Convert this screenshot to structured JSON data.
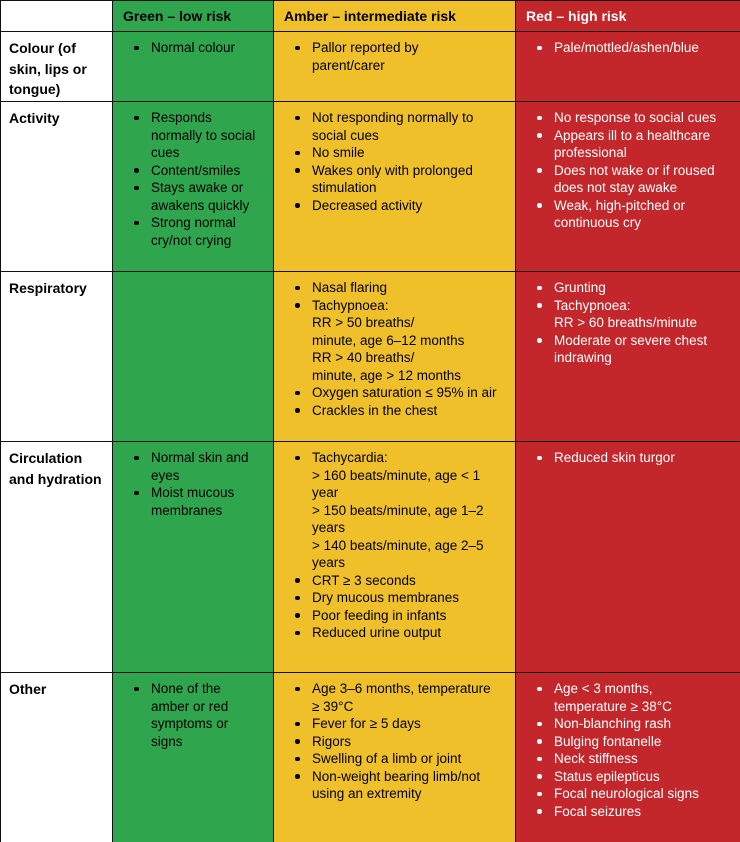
{
  "table": {
    "corner_label": "",
    "columns": [
      {
        "id": "green",
        "label": "Green – low risk",
        "bg": "#2FA64D",
        "text_color": "#000000"
      },
      {
        "id": "amber",
        "label": "Amber – intermediate risk",
        "bg": "#F0C02A",
        "text_color": "#000000"
      },
      {
        "id": "red",
        "label": "Red – high risk",
        "bg": "#C3272B",
        "text_color": "#FFFFFF"
      }
    ],
    "rows": [
      {
        "label": "Colour (of skin, lips or tongue)",
        "cells": {
          "green": [
            [
              "Normal colour"
            ]
          ],
          "amber": [
            [
              "Pallor reported by",
              "parent/carer"
            ]
          ],
          "red": [
            [
              "Pale/mottled/ashen/blue"
            ]
          ]
        }
      },
      {
        "label": "Activity",
        "cells": {
          "green": [
            [
              "Responds",
              "normally to social",
              "cues"
            ],
            [
              "Content/smiles"
            ],
            [
              "Stays awake or",
              "awakens quickly"
            ],
            [
              "Strong normal",
              "cry/not crying"
            ]
          ],
          "amber": [
            [
              "Not responding normally to",
              "social cues"
            ],
            [
              "No smile"
            ],
            [
              "Wakes only with prolonged",
              "stimulation"
            ],
            [
              "Decreased activity"
            ]
          ],
          "red": [
            [
              "No response to social cues"
            ],
            [
              "Appears ill to a healthcare",
              "professional"
            ],
            [
              "Does not wake or if roused",
              "does not stay awake"
            ],
            [
              "Weak, high-pitched or",
              "continuous cry"
            ]
          ]
        }
      },
      {
        "label": "Respiratory",
        "cells": {
          "green": [],
          "amber": [
            [
              "Nasal flaring"
            ],
            [
              "Tachypnoea:",
              "RR > 50 breaths/",
              "minute, age 6–12 months",
              "RR > 40 breaths/",
              "minute, age > 12 months"
            ],
            [
              "Oxygen saturation ≤ 95% in air"
            ],
            [
              "Crackles in the chest"
            ]
          ],
          "red": [
            [
              "Grunting"
            ],
            [
              "Tachypnoea:",
              "RR > 60 breaths/minute"
            ],
            [
              "Moderate or severe chest",
              "indrawing"
            ]
          ]
        }
      },
      {
        "label": "Circulation and hydration",
        "cells": {
          "green": [
            [
              "Normal skin and",
              "eyes"
            ],
            [
              "Moist mucous",
              "membranes"
            ]
          ],
          "amber": [
            [
              "Tachycardia:",
              "> 160 beats/minute, age < 1",
              "year",
              "> 150 beats/minute, age 1–2",
              "years",
              "> 140 beats/minute, age 2–5",
              "years"
            ],
            [
              "CRT ≥ 3 seconds"
            ],
            [
              "Dry mucous membranes"
            ],
            [
              "Poor feeding in infants"
            ],
            [
              "Reduced urine output"
            ]
          ],
          "red": [
            [
              "Reduced skin turgor"
            ]
          ]
        }
      },
      {
        "label": "Other",
        "cells": {
          "green": [
            [
              "None of the",
              "amber or red",
              "symptoms or",
              "signs"
            ]
          ],
          "amber": [
            [
              "Age 3–6 months, temperature",
              "≥ 39°C"
            ],
            [
              "Fever for ≥ 5 days"
            ],
            [
              "Rigors"
            ],
            [
              "Swelling of a limb or joint"
            ],
            [
              "Non-weight bearing limb/not",
              "using an extremity"
            ]
          ],
          "red": [
            [
              "Age < 3 months,",
              "temperature ≥ 38°C"
            ],
            [
              "Non-blanching rash"
            ],
            [
              "Bulging fontanelle"
            ],
            [
              "Neck stiffness"
            ],
            [
              "Status epilepticus"
            ],
            [
              "Focal neurological signs"
            ],
            [
              "Focal seizures"
            ]
          ]
        }
      }
    ]
  }
}
